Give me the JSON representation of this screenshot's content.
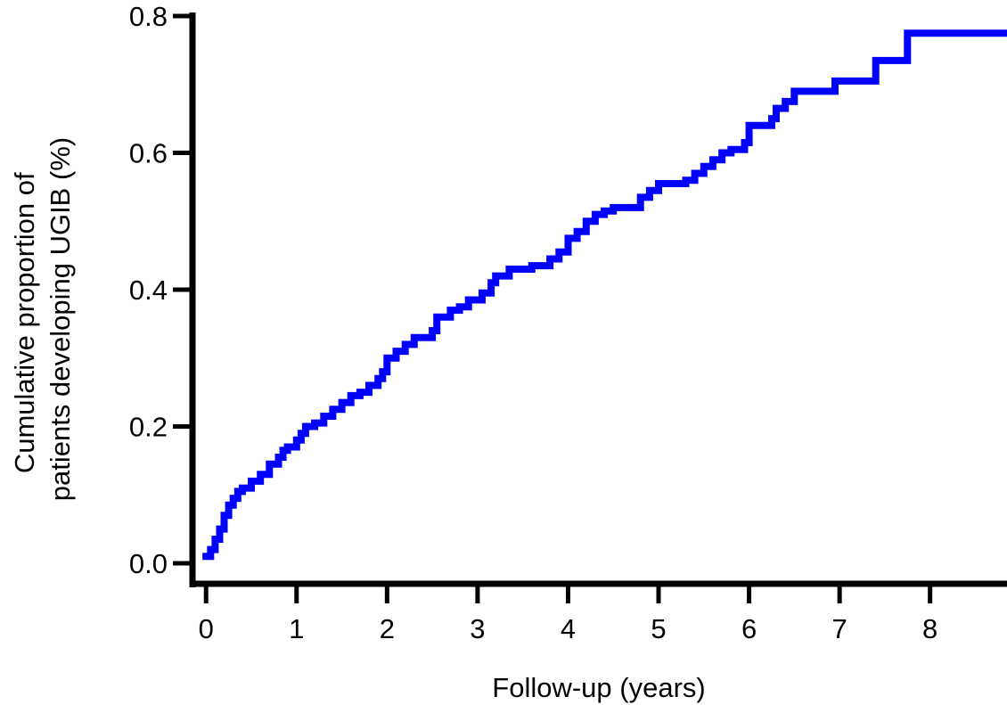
{
  "chart_data": {
    "type": "line",
    "step": true,
    "title": "",
    "xlabel": "Follow-up (years)",
    "ylabel_lines": [
      "Cumulative proportion of",
      "patients developing UGIB (%)"
    ],
    "xlim": [
      -0.15,
      8.85
    ],
    "ylim": [
      -0.03,
      0.8
    ],
    "xticks": [
      0,
      1,
      2,
      3,
      4,
      5,
      6,
      7,
      8
    ],
    "yticks": [
      0.0,
      0.2,
      0.4,
      0.6,
      0.8
    ],
    "ytick_labels": [
      "0.0",
      "0.2",
      "0.4",
      "0.6",
      "0.8"
    ],
    "grid": false,
    "series": [
      {
        "color": "#0000ff",
        "x": [
          0.0,
          0.05,
          0.1,
          0.15,
          0.2,
          0.25,
          0.3,
          0.35,
          0.4,
          0.5,
          0.6,
          0.7,
          0.8,
          0.85,
          0.9,
          1.0,
          1.05,
          1.1,
          1.2,
          1.3,
          1.4,
          1.5,
          1.6,
          1.7,
          1.8,
          1.9,
          1.95,
          2.0,
          2.1,
          2.2,
          2.3,
          2.5,
          2.55,
          2.7,
          2.8,
          2.9,
          3.05,
          3.15,
          3.2,
          3.35,
          3.6,
          3.8,
          3.9,
          4.0,
          4.1,
          4.2,
          4.3,
          4.4,
          4.5,
          4.8,
          4.9,
          5.0,
          5.3,
          5.4,
          5.5,
          5.6,
          5.7,
          5.8,
          5.95,
          6.0,
          6.25,
          6.3,
          6.4,
          6.5,
          6.95,
          7.4,
          7.75,
          8.85
        ],
        "y": [
          0.01,
          0.02,
          0.035,
          0.05,
          0.07,
          0.085,
          0.095,
          0.105,
          0.11,
          0.12,
          0.13,
          0.145,
          0.155,
          0.165,
          0.17,
          0.18,
          0.19,
          0.2,
          0.205,
          0.215,
          0.225,
          0.235,
          0.245,
          0.25,
          0.26,
          0.27,
          0.28,
          0.3,
          0.31,
          0.32,
          0.33,
          0.34,
          0.36,
          0.37,
          0.375,
          0.385,
          0.395,
          0.41,
          0.42,
          0.43,
          0.435,
          0.445,
          0.455,
          0.475,
          0.485,
          0.5,
          0.51,
          0.515,
          0.52,
          0.535,
          0.545,
          0.555,
          0.56,
          0.57,
          0.58,
          0.59,
          0.6,
          0.605,
          0.615,
          0.64,
          0.65,
          0.665,
          0.675,
          0.69,
          0.705,
          0.735,
          0.775,
          0.775
        ]
      }
    ]
  }
}
